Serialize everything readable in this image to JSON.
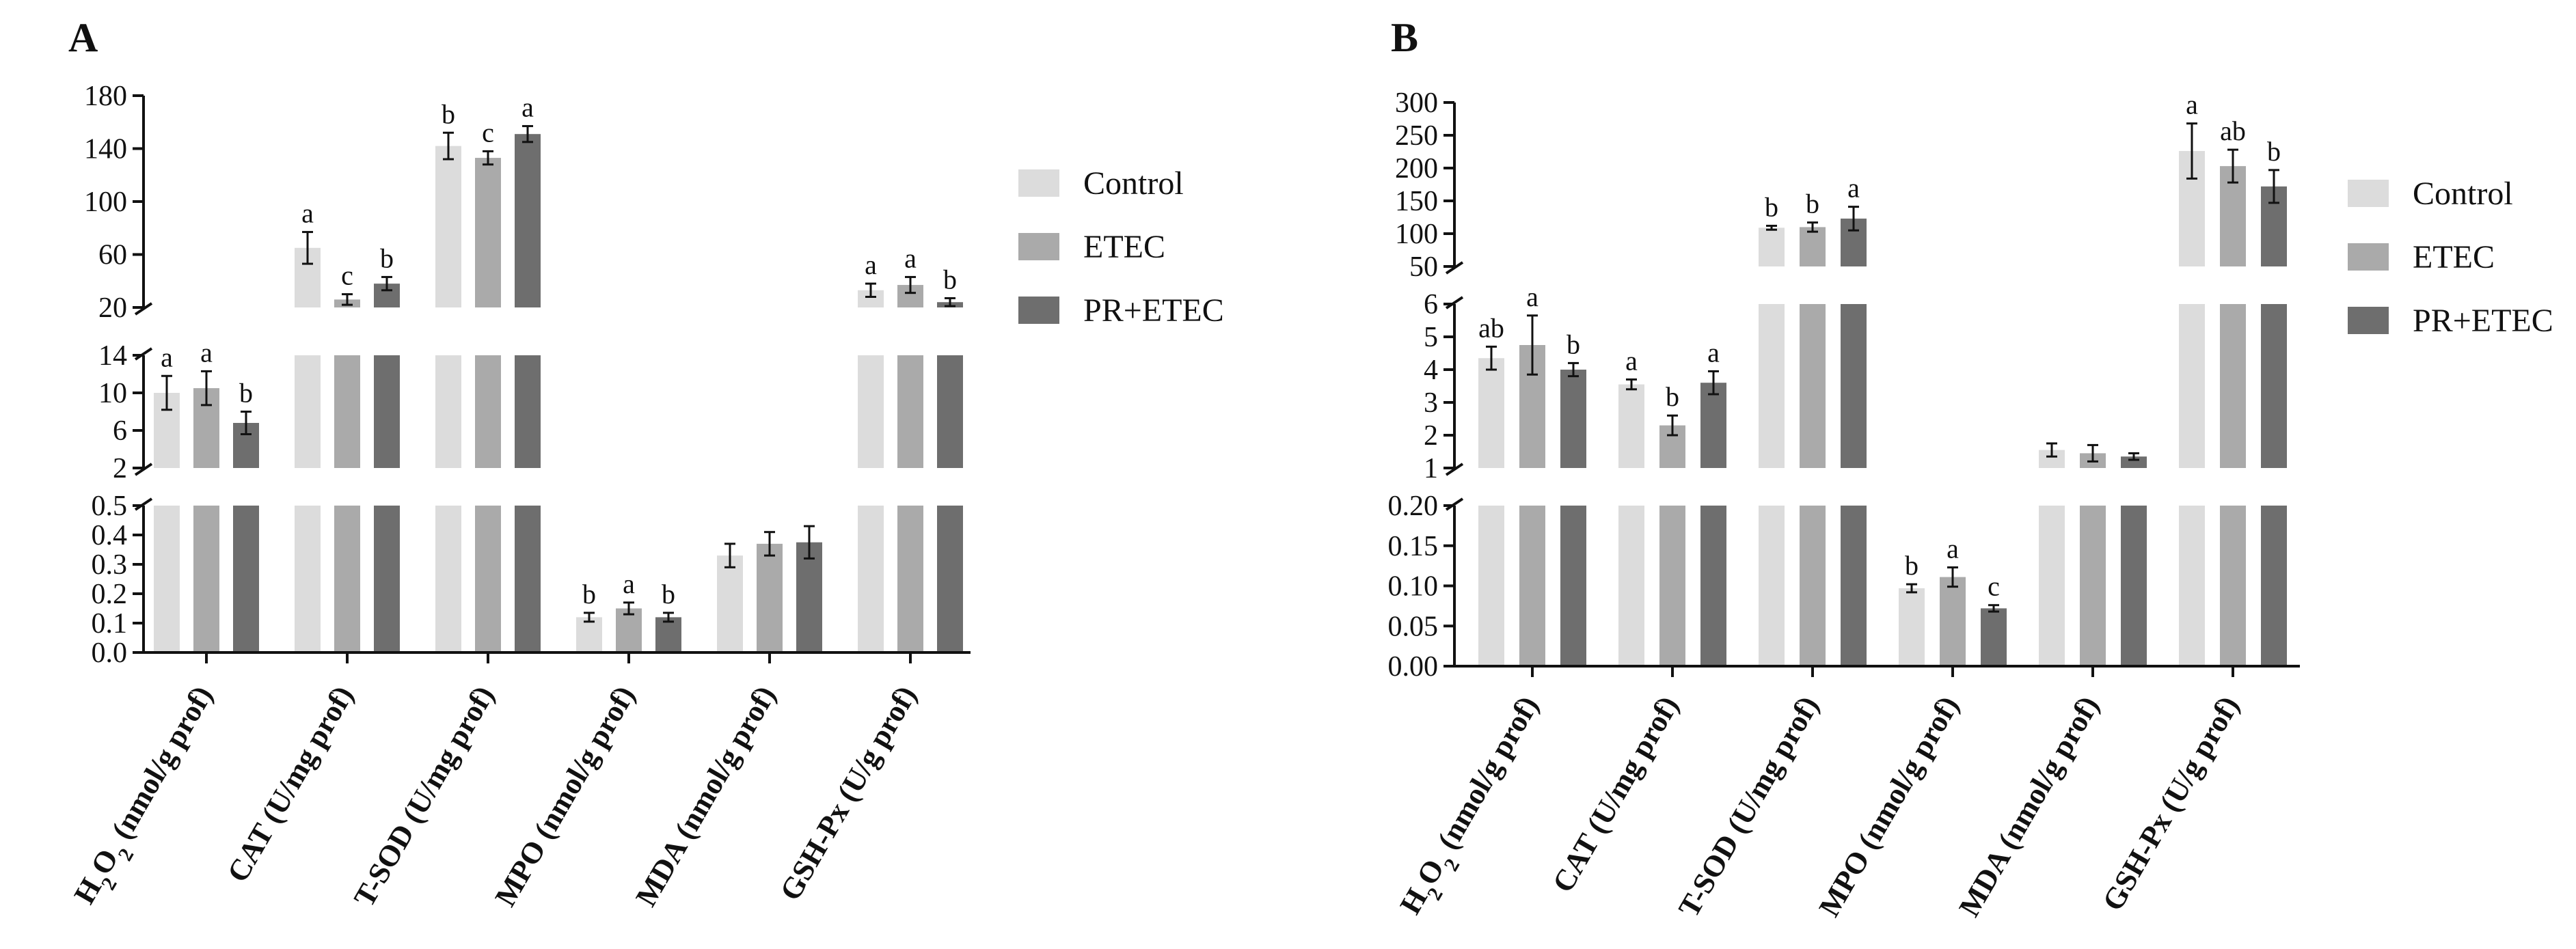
{
  "colors": {
    "control": "#dcdcdc",
    "etec": "#aaaaaa",
    "pr_etec": "#6e6e6e",
    "axis": "#111111"
  },
  "legend": {
    "items": [
      {
        "label": "Control",
        "color_key": "control"
      },
      {
        "label": "ETEC",
        "color_key": "etec"
      },
      {
        "label": "PR+ETEC",
        "color_key": "pr_etec"
      }
    ]
  },
  "chart_data": [
    {
      "panel": "A",
      "type": "bar",
      "title": "",
      "xlabel": "",
      "ylabel": "",
      "legend_position": "right",
      "categories": [
        {
          "main": "H",
          "sub": "2",
          "mid": "O",
          "sub2": "2",
          "rest": " (nmol/g prof)"
        },
        {
          "main": "CAT (U/mg prof)"
        },
        {
          "main": "T-SOD (U/mg prof)"
        },
        {
          "main": "MPO (nmol/g prof)"
        },
        {
          "main": "MDA (nmol/g prof)"
        },
        {
          "main": "GSH-Px (U/g prof)"
        }
      ],
      "series": [
        {
          "name": "Control",
          "values": [
            10.0,
            65,
            142,
            0.12,
            0.33,
            33
          ],
          "errors": [
            1.8,
            12,
            10,
            0.015,
            0.04,
            5
          ]
        },
        {
          "name": "ETEC",
          "values": [
            10.5,
            26,
            133,
            0.15,
            0.37,
            37
          ],
          "errors": [
            1.8,
            4,
            5,
            0.02,
            0.04,
            6
          ]
        },
        {
          "name": "PR+ETEC",
          "values": [
            6.8,
            38,
            151,
            0.12,
            0.375,
            24
          ],
          "errors": [
            1.2,
            5,
            6,
            0.015,
            0.055,
            3
          ]
        }
      ],
      "significance": [
        [
          "a",
          "a",
          "b"
        ],
        [
          "a",
          "c",
          "b"
        ],
        [
          "b",
          "c",
          "a"
        ],
        [
          "b",
          "a",
          "b"
        ],
        [
          "",
          "",
          ""
        ],
        [
          "a",
          "a",
          "b"
        ]
      ],
      "y_segments": [
        {
          "range": [
            0,
            0.5
          ],
          "ticks": [
            0.0,
            0.1,
            0.2,
            0.3,
            0.4,
            0.5
          ],
          "tick_labels": [
            "0.0",
            "0.1",
            "0.2",
            "0.3",
            "0.4",
            "0.5"
          ]
        },
        {
          "range": [
            2,
            14
          ],
          "ticks": [
            2,
            6,
            10,
            14
          ],
          "tick_labels": [
            "2",
            "6",
            "10",
            "14"
          ]
        },
        {
          "range": [
            20,
            180
          ],
          "ticks": [
            20,
            60,
            100,
            140,
            180
          ],
          "tick_labels": [
            "20",
            "60",
            "100",
            "140",
            "180"
          ]
        }
      ]
    },
    {
      "panel": "B",
      "type": "bar",
      "title": "",
      "xlabel": "",
      "ylabel": "",
      "legend_position": "right",
      "categories": [
        {
          "main": "H",
          "sub": "2",
          "mid": "O",
          "sub2": "2",
          "rest": " (nmol/g prof)"
        },
        {
          "main": "CAT (U/mg prof)"
        },
        {
          "main": "T-SOD (U/mg prof)"
        },
        {
          "main": "MPO (nmol/g prof)"
        },
        {
          "main": "MDA (nmol/g prof)"
        },
        {
          "main": "GSH-Px (U/g prof)"
        }
      ],
      "series": [
        {
          "name": "Control",
          "values": [
            4.35,
            3.55,
            109,
            0.097,
            1.55,
            226
          ],
          "errors": [
            0.35,
            0.15,
            3,
            0.005,
            0.2,
            42
          ]
        },
        {
          "name": "ETEC",
          "values": [
            4.75,
            2.3,
            110,
            0.111,
            1.45,
            203
          ],
          "errors": [
            0.9,
            0.3,
            7,
            0.012,
            0.25,
            25
          ]
        },
        {
          "name": "PR+ETEC",
          "values": [
            4.0,
            3.6,
            123,
            0.072,
            1.35,
            172
          ],
          "errors": [
            0.2,
            0.35,
            18,
            0.004,
            0.1,
            25
          ]
        }
      ],
      "significance": [
        [
          "ab",
          "a",
          "b"
        ],
        [
          "a",
          "b",
          "a"
        ],
        [
          "b",
          "b",
          "a"
        ],
        [
          "b",
          "a",
          "c"
        ],
        [
          "",
          "",
          ""
        ],
        [
          "a",
          "ab",
          "b"
        ]
      ],
      "y_segments": [
        {
          "range": [
            0,
            0.2
          ],
          "ticks": [
            0.0,
            0.05,
            0.1,
            0.15,
            0.2
          ],
          "tick_labels": [
            "0.00",
            "0.05",
            "0.10",
            "0.15",
            "0.20"
          ]
        },
        {
          "range": [
            1,
            6
          ],
          "ticks": [
            1,
            2,
            3,
            4,
            5,
            6
          ],
          "tick_labels": [
            "1",
            "2",
            "3",
            "4",
            "5",
            "6"
          ]
        },
        {
          "range": [
            50,
            300
          ],
          "ticks": [
            50,
            100,
            150,
            200,
            250,
            300
          ],
          "tick_labels": [
            "50",
            "100",
            "150",
            "200",
            "250",
            "300"
          ]
        }
      ]
    }
  ]
}
